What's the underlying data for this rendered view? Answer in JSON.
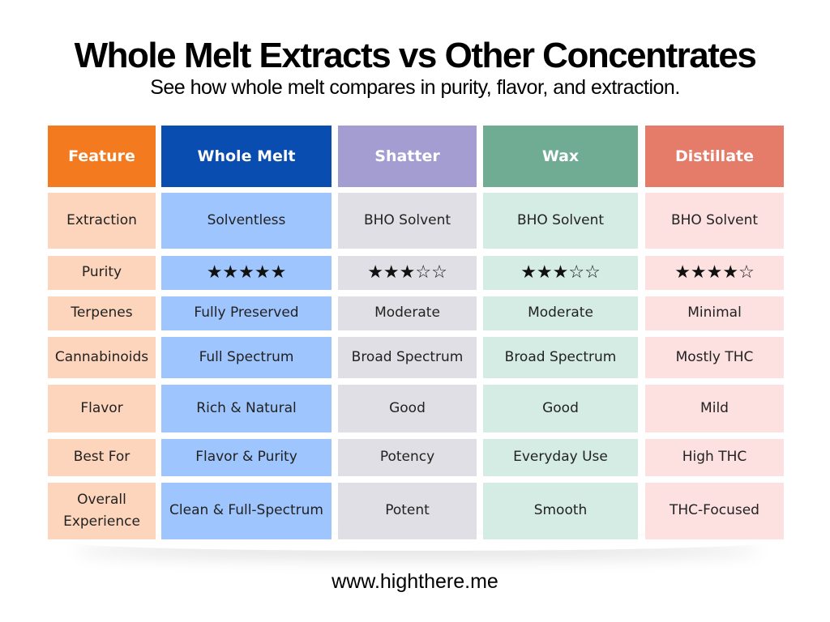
{
  "header": {
    "title": "Whole Melt Extracts vs Other Concentrates",
    "subtitle": "See how whole melt compares in purity, flavor, and extraction."
  },
  "table": {
    "columns": [
      "Feature",
      "Whole Melt",
      "Shatter",
      "Wax",
      "Distillate"
    ],
    "rows": [
      [
        "Extraction",
        "Solventless",
        "BHO Solvent",
        "BHO Solvent",
        "BHO Solvent"
      ],
      [
        "Purity",
        "★★★★★",
        "★★★☆☆",
        "★★★☆☆",
        "★★★★☆"
      ],
      [
        "Terpenes",
        "Fully Preserved",
        "Moderate",
        "Moderate",
        "Minimal"
      ],
      [
        "Cannabinoids",
        "Full Spectrum",
        "Broad Spectrum",
        "Broad Spectrum",
        "Mostly THC"
      ],
      [
        "Flavor",
        "Rich & Natural",
        "Good",
        "Good",
        "Mild"
      ],
      [
        "Best For",
        "Flavor & Purity",
        "Potency",
        "Everyday Use",
        "High THC"
      ],
      [
        "Overall Experience",
        "Clean & Full-Spectrum",
        "Potent",
        "Smooth",
        "THC-Focused"
      ]
    ]
  },
  "footer": {
    "url": "www.highthere.me"
  }
}
